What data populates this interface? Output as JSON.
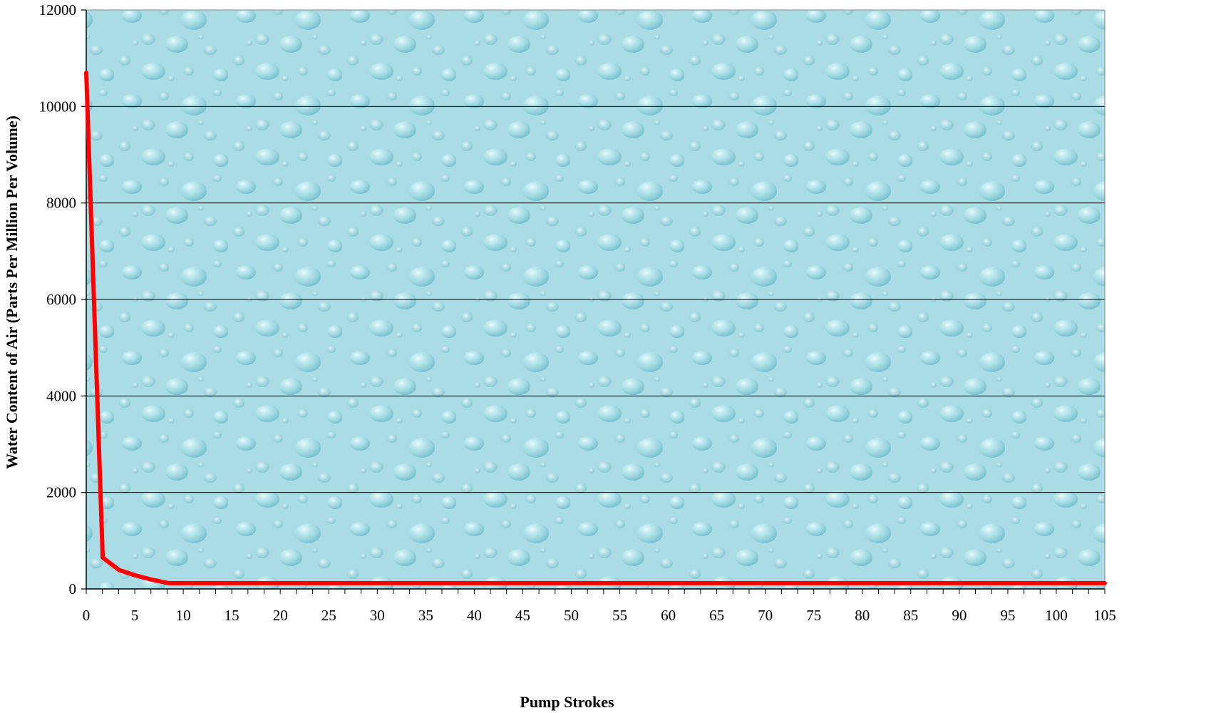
{
  "chart_data": {
    "type": "line",
    "title": "",
    "xlabel": "Pump Strokes",
    "ylabel": "Water Content of Air (Parts Per Million Per Volume)",
    "xlim": [
      0,
      105
    ],
    "ylim": [
      0,
      12000
    ],
    "x_ticks": [
      0,
      5,
      10,
      15,
      20,
      25,
      30,
      35,
      40,
      45,
      50,
      55,
      60,
      65,
      70,
      75,
      80,
      85,
      90,
      95,
      100,
      105
    ],
    "y_ticks": [
      0,
      2000,
      4000,
      6000,
      8000,
      10000,
      12000
    ],
    "grid": "horizontal",
    "legend": "none",
    "background": "water-droplets",
    "plot_background_color": "#a6dbe3",
    "series": [
      {
        "color": "#ff0000",
        "x": [
          0,
          1.7,
          3.4,
          5.1,
          6.8,
          8.5,
          10,
          105
        ],
        "y": [
          10700,
          650,
          390,
          280,
          190,
          120,
          120,
          120
        ]
      }
    ]
  }
}
